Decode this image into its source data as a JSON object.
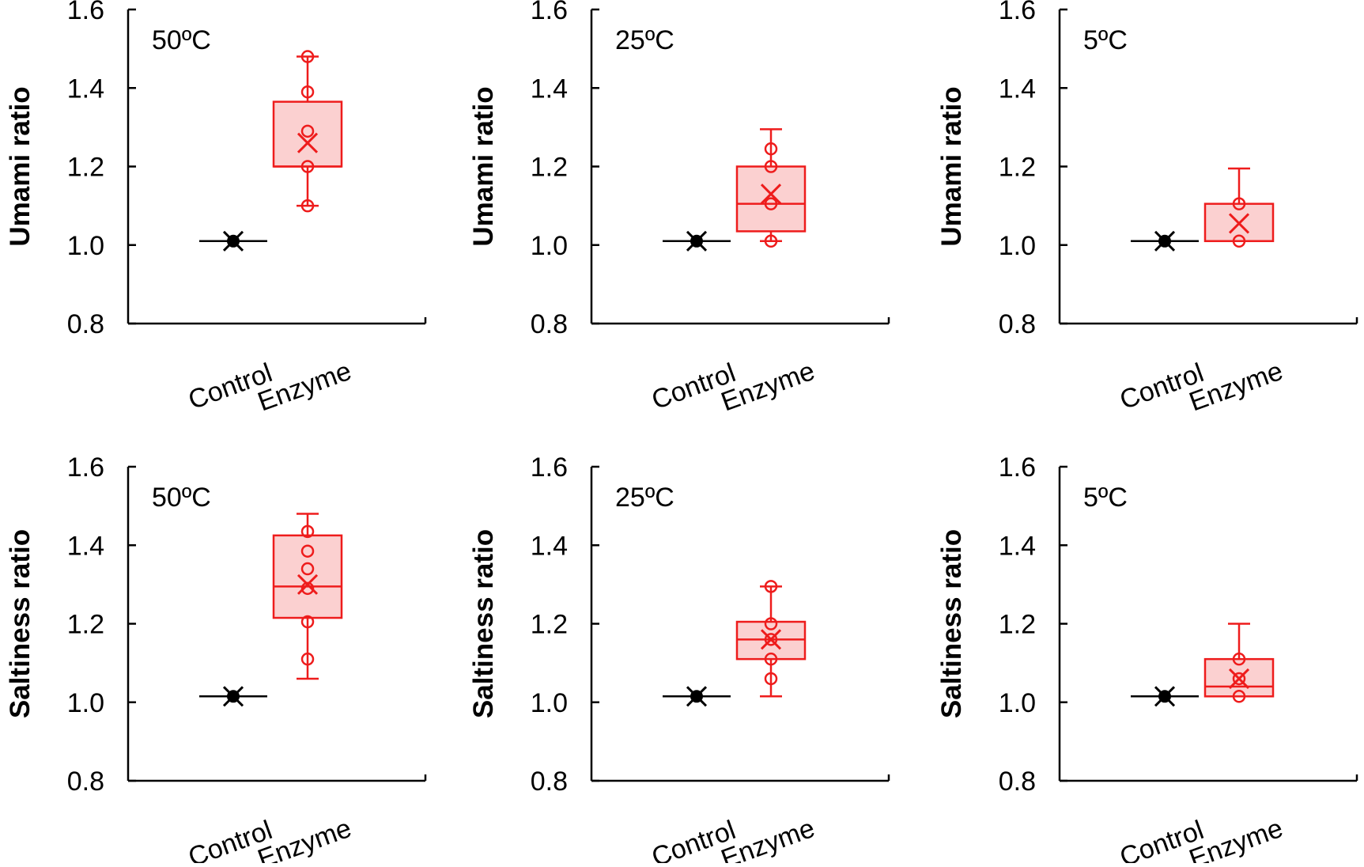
{
  "chart_data": [
    {
      "type": "box",
      "panel": "top-left",
      "annotation": "50ºC",
      "ylabel": "Umami ratio",
      "ylim": [
        0.8,
        1.6
      ],
      "yticks": [
        "0.8",
        "1.0",
        "1.2",
        "1.4",
        "1.6"
      ],
      "categories": [
        "Control",
        "Enzyme"
      ],
      "series": [
        {
          "name": "Control",
          "color": "#000000",
          "min": 1.01,
          "q1": 1.01,
          "median": 1.01,
          "q3": 1.01,
          "max": 1.01,
          "mean": 1.01,
          "points": [
            1.01
          ]
        },
        {
          "name": "Enzyme",
          "color": "#ee1c1c",
          "min": 1.1,
          "q1": 1.2,
          "median": 1.2,
          "q3": 1.365,
          "max": 1.48,
          "mean": 1.26,
          "points": [
            1.1,
            1.2,
            1.29,
            1.39,
            1.48
          ]
        }
      ]
    },
    {
      "type": "box",
      "panel": "top-middle",
      "annotation": "25ºC",
      "ylabel": "Umami ratio",
      "ylim": [
        0.8,
        1.6
      ],
      "yticks": [
        "0.8",
        "1.0",
        "1.2",
        "1.4",
        "1.6"
      ],
      "categories": [
        "Control",
        "Enzyme"
      ],
      "series": [
        {
          "name": "Control",
          "color": "#000000",
          "min": 1.01,
          "q1": 1.01,
          "median": 1.01,
          "q3": 1.01,
          "max": 1.01,
          "mean": 1.01,
          "points": [
            1.01
          ]
        },
        {
          "name": "Enzyme",
          "color": "#ee1c1c",
          "min": 1.01,
          "q1": 1.035,
          "median": 1.105,
          "q3": 1.2,
          "max": 1.295,
          "mean": 1.13,
          "points": [
            1.01,
            1.105,
            1.2,
            1.245
          ]
        }
      ]
    },
    {
      "type": "box",
      "panel": "top-right",
      "annotation": "5ºC",
      "ylabel": "Umami ratio",
      "ylim": [
        0.8,
        1.6
      ],
      "yticks": [
        "0.8",
        "1.0",
        "1.2",
        "1.4",
        "1.6"
      ],
      "categories": [
        "Control",
        "Enzyme"
      ],
      "series": [
        {
          "name": "Control",
          "color": "#000000",
          "min": 1.01,
          "q1": 1.01,
          "median": 1.01,
          "q3": 1.01,
          "max": 1.01,
          "mean": 1.01,
          "points": [
            1.01
          ]
        },
        {
          "name": "Enzyme",
          "color": "#ee1c1c",
          "min": 1.01,
          "q1": 1.01,
          "median": 1.01,
          "q3": 1.105,
          "max": 1.195,
          "mean": 1.055,
          "points": [
            1.01,
            1.105
          ]
        }
      ]
    },
    {
      "type": "box",
      "panel": "bottom-left",
      "annotation": "50ºC",
      "ylabel": "Saltiness ratio",
      "ylim": [
        0.8,
        1.6
      ],
      "yticks": [
        "0.8",
        "1.0",
        "1.2",
        "1.4",
        "1.6"
      ],
      "categories": [
        "Control",
        "Enzyme"
      ],
      "series": [
        {
          "name": "Control",
          "color": "#000000",
          "min": 1.015,
          "q1": 1.015,
          "median": 1.015,
          "q3": 1.015,
          "max": 1.015,
          "mean": 1.015,
          "points": [
            1.015
          ]
        },
        {
          "name": "Enzyme",
          "color": "#ee1c1c",
          "min": 1.06,
          "q1": 1.215,
          "median": 1.295,
          "q3": 1.425,
          "max": 1.48,
          "mean": 1.3,
          "points": [
            1.11,
            1.205,
            1.29,
            1.34,
            1.385,
            1.435
          ]
        }
      ]
    },
    {
      "type": "box",
      "panel": "bottom-middle",
      "annotation": "25ºC",
      "ylabel": "Saltiness ratio",
      "ylim": [
        0.8,
        1.6
      ],
      "yticks": [
        "0.8",
        "1.0",
        "1.2",
        "1.4",
        "1.6"
      ],
      "categories": [
        "Control",
        "Enzyme"
      ],
      "series": [
        {
          "name": "Control",
          "color": "#000000",
          "min": 1.015,
          "q1": 1.015,
          "median": 1.015,
          "q3": 1.015,
          "max": 1.015,
          "mean": 1.015,
          "points": [
            1.015
          ]
        },
        {
          "name": "Enzyme",
          "color": "#ee1c1c",
          "min": 1.015,
          "q1": 1.11,
          "median": 1.16,
          "q3": 1.205,
          "max": 1.295,
          "mean": 1.16,
          "points": [
            1.06,
            1.11,
            1.16,
            1.2,
            1.295
          ]
        }
      ]
    },
    {
      "type": "box",
      "panel": "bottom-right",
      "annotation": "5ºC",
      "ylabel": "Saltiness ratio",
      "ylim": [
        0.8,
        1.6
      ],
      "yticks": [
        "0.8",
        "1.0",
        "1.2",
        "1.4",
        "1.6"
      ],
      "categories": [
        "Control",
        "Enzyme"
      ],
      "series": [
        {
          "name": "Control",
          "color": "#000000",
          "min": 1.015,
          "q1": 1.015,
          "median": 1.015,
          "q3": 1.015,
          "max": 1.015,
          "mean": 1.015,
          "points": [
            1.015
          ]
        },
        {
          "name": "Enzyme",
          "color": "#ee1c1c",
          "min": 1.015,
          "q1": 1.015,
          "median": 1.04,
          "q3": 1.11,
          "max": 1.2,
          "mean": 1.06,
          "points": [
            1.015,
            1.06,
            1.11
          ]
        }
      ]
    }
  ]
}
